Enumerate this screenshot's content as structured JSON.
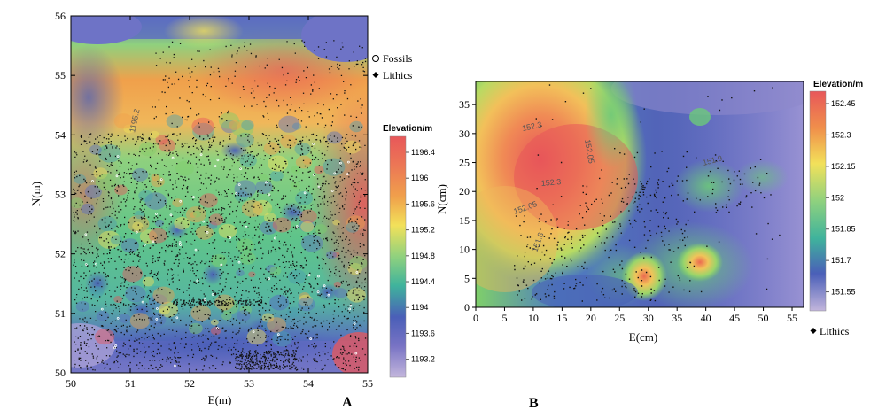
{
  "chart_data": [
    {
      "type": "heatmap",
      "panel_label": "A",
      "xlabel": "E(m)",
      "ylabel": "N(m)",
      "xlim": [
        50,
        55
      ],
      "ylim": [
        50,
        56
      ],
      "x_ticks": [
        "50",
        "51",
        "52",
        "53",
        "54",
        "55"
      ],
      "y_ticks": [
        "50",
        "51",
        "52",
        "53",
        "54",
        "55",
        "56"
      ],
      "colorbar_title": "Elevation/m",
      "colorbar_labels": [
        "1196.4",
        "1196",
        "1195.6",
        "1195.2",
        "1194.8",
        "1194.4",
        "1194",
        "1193.6",
        "1193.2"
      ],
      "contour_labels": [
        "1195.2"
      ],
      "legend": [
        "Fossils",
        "Lithics"
      ]
    },
    {
      "type": "heatmap",
      "panel_label": "B",
      "xlabel": "E(cm)",
      "ylabel": "N(cm)",
      "xlim": [
        0,
        57
      ],
      "ylim": [
        0,
        39
      ],
      "x_ticks": [
        "0",
        "5",
        "10",
        "15",
        "20",
        "25",
        "30",
        "35",
        "40",
        "45",
        "50",
        "55"
      ],
      "y_ticks": [
        "0",
        "5",
        "10",
        "15",
        "20",
        "25",
        "30",
        "35"
      ],
      "colorbar_title": "Elevation/m",
      "colorbar_labels": [
        "152.45",
        "152.3",
        "152.15",
        "152",
        "151.85",
        "151.7",
        "151.55"
      ],
      "contour_labels": [
        "152.3",
        "152.05",
        "152.3",
        "152.05",
        "151.8",
        "151.9"
      ],
      "legend": [
        "Lithics"
      ]
    }
  ],
  "colors": {
    "high": "#e8575a",
    "mid_high": "#f0a04b",
    "mid": "#f2e15a",
    "mid_low": "#7fcf6a",
    "low": "#3a9f9a",
    "lower": "#4a5fb8",
    "lowest": "#c3b6dc"
  }
}
